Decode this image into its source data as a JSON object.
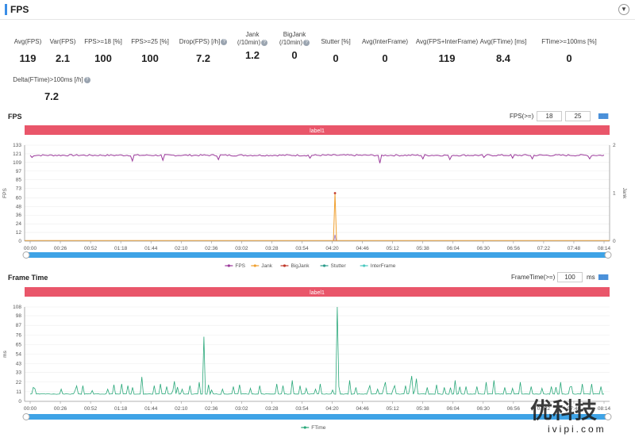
{
  "header": {
    "title": "FPS"
  },
  "stats": [
    {
      "label": "Avg(FPS)",
      "value": "119",
      "help": false
    },
    {
      "label": "Var(FPS)",
      "value": "2.1",
      "help": false
    },
    {
      "label": "FPS>=18 [%]",
      "value": "100",
      "help": false
    },
    {
      "label": "FPS>=25 [%]",
      "value": "100",
      "help": false
    },
    {
      "label": "Drop(FPS) [/h]",
      "value": "7.2",
      "help": true
    },
    {
      "label": "Jank\n(/10min)",
      "value": "1.2",
      "help": true
    },
    {
      "label": "BigJank\n(/10min)",
      "value": "0",
      "help": true
    },
    {
      "label": "Stutter [%]",
      "value": "0",
      "help": false
    },
    {
      "label": "Avg(InterFrame)",
      "value": "0",
      "help": false
    },
    {
      "label": "Avg(FPS+InterFrame)",
      "value": "119",
      "help": false
    },
    {
      "label": "Avg(FTime) [ms]",
      "value": "8.4",
      "help": false
    },
    {
      "label": "FTime>=100ms [%]",
      "value": "0",
      "help": false
    },
    {
      "label": "Delta(FTime)>100ms [/h]",
      "value": "7.2",
      "help": true
    }
  ],
  "fps_section": {
    "title": "FPS",
    "threshold_label": "FPS(>=)",
    "threshold_1": "18",
    "threshold_2": "25"
  },
  "ft_section": {
    "title": "Frame Time",
    "threshold_label": "FrameTime(>=)",
    "threshold_value": "100",
    "unit": "ms"
  },
  "watermark": {
    "brand": "优科技",
    "url": "ivipi.com"
  },
  "chart_data": [
    {
      "type": "line",
      "banner": "label1",
      "ylabel": "FPS",
      "y2label": "Jank",
      "ylim": [
        0,
        133
      ],
      "y_ticks": [
        0,
        12,
        24,
        36,
        48,
        60,
        73,
        85,
        97,
        109,
        121,
        133
      ],
      "y2lim": [
        0,
        2
      ],
      "y2_ticks": [
        0,
        1,
        2
      ],
      "x_ticks": [
        "00:00",
        "00:26",
        "00:52",
        "01:18",
        "01:44",
        "02:10",
        "02:36",
        "03:02",
        "03:28",
        "03:54",
        "04:20",
        "04:46",
        "05:12",
        "05:38",
        "06:04",
        "06:30",
        "06:56",
        "07:22",
        "07:48",
        "08:14"
      ],
      "x_range_sec": [
        0,
        497
      ],
      "series": [
        {
          "name": "FPS",
          "color": "#9b3a9b",
          "baseline": 119,
          "dips": [
            [
              2,
              116
            ],
            [
              135,
              111
            ],
            [
              175,
              112
            ],
            [
              250,
              113
            ],
            [
              370,
              115
            ],
            [
              463,
              108
            ],
            [
              520,
              114
            ],
            [
              556,
              113
            ],
            [
              602,
              116
            ],
            [
              640,
              115
            ],
            [
              665,
              114
            ],
            [
              740,
              114
            ]
          ]
        },
        {
          "name": "Jank",
          "color": "#f0a030",
          "spike_x_sec": 264,
          "spike_value": 1
        },
        {
          "name": "BigJank",
          "color": "#c0392b"
        },
        {
          "name": "Stutter",
          "color": "#2c9c8c"
        },
        {
          "name": "InterFrame",
          "color": "#4cc9c0"
        }
      ],
      "legend": "bottom-center"
    },
    {
      "type": "line",
      "banner": "label1",
      "ylabel": "ms",
      "ylim": [
        0,
        108
      ],
      "y_ticks": [
        0,
        11,
        22,
        33,
        43,
        54,
        65,
        76,
        87,
        98,
        108
      ],
      "x_ticks": [
        "00:00",
        "00:26",
        "00:52",
        "01:18",
        "01:44",
        "02:10",
        "02:36",
        "03:02",
        "03:28",
        "03:54",
        "04:20",
        "04:46",
        "05:12",
        "05:38",
        "06:04",
        "06:30",
        "06:56",
        "07:22",
        "07:48",
        "08:14"
      ],
      "x_range_sec": [
        0,
        497
      ],
      "series": [
        {
          "name": "FTime",
          "color": "#2aa87a",
          "baseline": 8.4,
          "spikes": [
            [
              5,
              16
            ],
            [
              40,
              14
            ],
            [
              68,
              18
            ],
            [
              100,
              14
            ],
            [
              108,
              19
            ],
            [
              118,
              20
            ],
            [
              126,
              18
            ],
            [
              132,
              16
            ],
            [
              145,
              28
            ],
            [
              160,
              18
            ],
            [
              168,
              20
            ],
            [
              176,
              17
            ],
            [
              186,
              23
            ],
            [
              197,
              14
            ],
            [
              206,
              18
            ],
            [
              218,
              22
            ],
            [
              230,
              19
            ],
            [
              248,
              14
            ],
            [
              262,
              17
            ],
            [
              270,
              19
            ],
            [
              284,
              15
            ],
            [
              296,
              18
            ],
            [
              318,
              20
            ],
            [
              327,
              18
            ],
            [
              338,
              24
            ],
            [
              349,
              18
            ],
            [
              356,
              15
            ],
            [
              368,
              14
            ],
            [
              374,
              20
            ],
            [
              390,
              13
            ],
            [
              398,
              17
            ],
            [
              413,
              24
            ],
            [
              420,
              16
            ],
            [
              438,
              18
            ],
            [
              448,
              14
            ],
            [
              458,
              22
            ],
            [
              470,
              18
            ],
            [
              484,
              18
            ],
            [
              492,
              29
            ],
            [
              498,
              26
            ],
            [
              512,
              16
            ],
            [
              524,
              19
            ],
            [
              535,
              16
            ],
            [
              548,
              24
            ],
            [
              562,
              17
            ],
            [
              576,
              17
            ],
            [
              588,
              22
            ],
            [
              598,
              24
            ],
            [
              612,
              16
            ],
            [
              623,
              15
            ],
            [
              632,
              22
            ],
            [
              646,
              17
            ],
            [
              660,
              15
            ],
            [
              672,
              17
            ],
            [
              684,
              22
            ],
            [
              698,
              17
            ],
            [
              712,
              20
            ],
            [
              724,
              20
            ],
            [
              736,
              17
            ],
            [
              742,
              36
            ]
          ],
          "big_spikes": [
            [
              224,
              74
            ],
            [
              396,
              108
            ]
          ]
        }
      ],
      "legend": "bottom-center"
    }
  ]
}
